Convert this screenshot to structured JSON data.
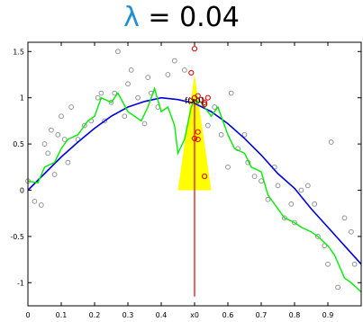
{
  "title": {
    "symbol": "λ",
    "text": "= 0.04"
  },
  "chart_data": {
    "type": "scatter",
    "title": "λ = 0.04",
    "xlim": [
      0,
      1
    ],
    "ylim": [
      -1.25,
      1.6
    ],
    "x_ticks": [
      0,
      0.1,
      0.2,
      0.3,
      0.4,
      "x0",
      0.6,
      0.7,
      0.8,
      0.9
    ],
    "y_ticks": [
      1.5,
      1,
      0.5,
      0,
      -0.5,
      -1
    ],
    "query_point": {
      "x": 0.5,
      "label": "x0",
      "annotation": "f(x0)",
      "fx0": 0.97
    },
    "colors": {
      "true_curve": "#0000dd",
      "estimate": "#00ee00",
      "kernel": "#ffff00",
      "marker": "#dd0000",
      "points": "#888888"
    },
    "series": [
      {
        "name": "",
        "kind": "points",
        "x": [
          0.0,
          0.02,
          0.04,
          0.05,
          0.06,
          0.07,
          0.08,
          0.09,
          0.1,
          0.11,
          0.12,
          0.13,
          0.15,
          0.17,
          0.19,
          0.21,
          0.22,
          0.23,
          0.25,
          0.26,
          0.27,
          0.29,
          0.3,
          0.31,
          0.33,
          0.35,
          0.36,
          0.37,
          0.39,
          0.42,
          0.44,
          0.47,
          0.54,
          0.56,
          0.58,
          0.6,
          0.61,
          0.63,
          0.65,
          0.66,
          0.68,
          0.7,
          0.72,
          0.74,
          0.75,
          0.77,
          0.79,
          0.8,
          0.82,
          0.84,
          0.86,
          0.87,
          0.89,
          0.9,
          0.91,
          0.93,
          0.95,
          0.97,
          0.98
        ],
        "y": [
          0.1,
          -0.12,
          -0.16,
          0.5,
          0.4,
          0.65,
          0.17,
          0.6,
          0.8,
          0.55,
          0.3,
          0.9,
          0.55,
          0.7,
          0.75,
          1.0,
          1.05,
          0.75,
          0.95,
          1.05,
          1.5,
          0.8,
          1.15,
          1.3,
          1.0,
          0.72,
          1.22,
          1.05,
          0.9,
          1.25,
          1.4,
          1.3,
          0.7,
          0.9,
          0.6,
          0.25,
          1.05,
          0.45,
          0.6,
          0.3,
          0.15,
          0.1,
          -0.1,
          0.25,
          0.05,
          -0.3,
          -0.15,
          -0.35,
          0.0,
          0.05,
          -0.15,
          -0.5,
          -0.6,
          -0.8,
          0.52,
          -1.05,
          -0.3,
          -0.45,
          -0.8
        ]
      },
      {
        "name": "",
        "kind": "highlighted-points",
        "x": [
          0.49,
          0.5,
          0.51,
          0.52,
          0.53,
          0.53,
          0.54,
          0.5,
          0.51,
          0.53,
          0.51,
          0.49,
          0.5,
          0.53
        ],
        "y": [
          0.97,
          1.0,
          1.02,
          0.98,
          0.95,
          0.93,
          1.0,
          0.56,
          0.55,
          0.15,
          0.63,
          1.27,
          1.53,
          0.93
        ]
      },
      {
        "name": "",
        "kind": "true-curve",
        "x": [
          0.0,
          0.05,
          0.1,
          0.15,
          0.2,
          0.25,
          0.3,
          0.35,
          0.4,
          0.45,
          0.5,
          0.55,
          0.6,
          0.65,
          0.7,
          0.75,
          0.8,
          0.85,
          0.9,
          0.95,
          1.0
        ],
        "y": [
          0.0,
          0.18,
          0.36,
          0.52,
          0.67,
          0.8,
          0.9,
          0.96,
          1.0,
          0.98,
          0.94,
          0.85,
          0.72,
          0.56,
          0.38,
          0.18,
          0.02,
          -0.2,
          -0.4,
          -0.6,
          -0.8
        ]
      },
      {
        "name": "",
        "kind": "estimate",
        "x": [
          0.0,
          0.03,
          0.05,
          0.08,
          0.1,
          0.12,
          0.15,
          0.18,
          0.2,
          0.22,
          0.25,
          0.27,
          0.3,
          0.32,
          0.34,
          0.36,
          0.38,
          0.4,
          0.42,
          0.44,
          0.45,
          0.47,
          0.49,
          0.5,
          0.52,
          0.55,
          0.57,
          0.6,
          0.62,
          0.65,
          0.67,
          0.7,
          0.72,
          0.75,
          0.77,
          0.8,
          0.82,
          0.85,
          0.87,
          0.9,
          0.92,
          0.95,
          0.97,
          1.0
        ],
        "y": [
          0.1,
          0.08,
          0.25,
          0.3,
          0.45,
          0.55,
          0.6,
          0.75,
          0.8,
          1.0,
          0.95,
          1.05,
          0.85,
          0.8,
          0.75,
          0.9,
          1.1,
          0.85,
          0.9,
          0.7,
          0.4,
          0.55,
          0.9,
          0.97,
          0.95,
          0.8,
          0.9,
          0.6,
          0.45,
          0.4,
          0.25,
          0.2,
          -0.05,
          -0.2,
          -0.3,
          -0.35,
          -0.4,
          -0.45,
          -0.5,
          -0.6,
          -0.7,
          -0.95,
          -1.0,
          -1.1
        ]
      }
    ],
    "kernel": {
      "center": 0.5,
      "half_width": 0.05,
      "height": 1.25
    }
  }
}
